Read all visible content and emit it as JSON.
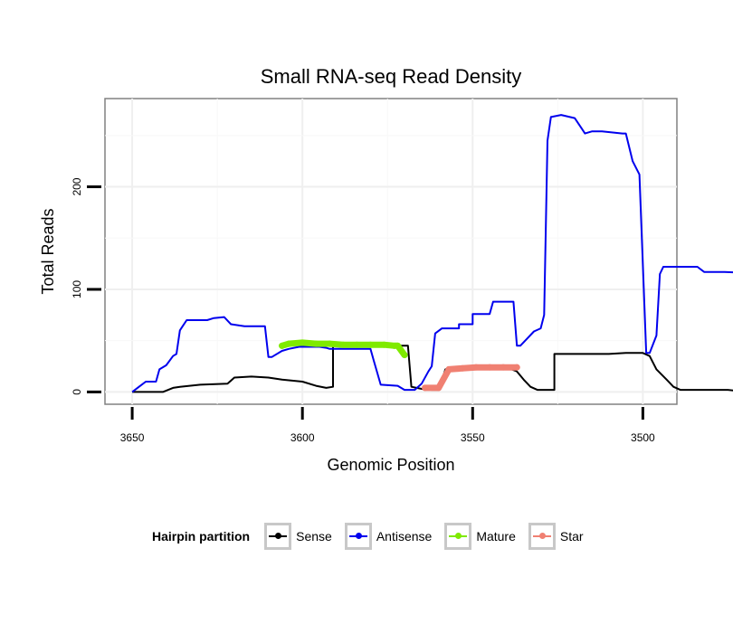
{
  "chart_data": {
    "type": "line",
    "title": "Small RNA-seq Read Density",
    "xlabel": "Genomic Position",
    "ylabel": "Total Reads",
    "xlim": [
      3658,
      3490
    ],
    "ylim": [
      -12,
      286
    ],
    "x_ticks": [
      3650,
      3600,
      3550,
      3500
    ],
    "y_ticks": [
      0,
      100,
      200
    ],
    "legend_title": "Hairpin partition",
    "legend_position": "bottom",
    "series": [
      {
        "name": "Sense",
        "color": "#000000",
        "points": [
          [
            3650,
            0
          ],
          [
            3641,
            0
          ],
          [
            3638,
            4
          ],
          [
            3636,
            5
          ],
          [
            3630,
            7
          ],
          [
            3622,
            8
          ],
          [
            3620,
            14
          ],
          [
            3615,
            15
          ],
          [
            3610,
            14
          ],
          [
            3606,
            12
          ],
          [
            3600,
            10
          ],
          [
            3596,
            6
          ],
          [
            3593,
            4
          ],
          [
            3591,
            5
          ],
          [
            3591,
            45
          ],
          [
            3580,
            45
          ],
          [
            3572,
            45
          ],
          [
            3569,
            45
          ],
          [
            3568,
            5
          ],
          [
            3565,
            3
          ],
          [
            3562,
            2
          ],
          [
            3560,
            2
          ],
          [
            3558,
            22
          ],
          [
            3555,
            23
          ],
          [
            3552,
            24
          ],
          [
            3548,
            25
          ],
          [
            3544,
            25
          ],
          [
            3540,
            24
          ],
          [
            3537,
            20
          ],
          [
            3535,
            12
          ],
          [
            3533,
            5
          ],
          [
            3531,
            2
          ],
          [
            3526,
            2
          ],
          [
            3526,
            37
          ],
          [
            3520,
            37
          ],
          [
            3510,
            37
          ],
          [
            3505,
            38
          ],
          [
            3500,
            38
          ],
          [
            3498,
            35
          ],
          [
            3496,
            22
          ],
          [
            3493,
            12
          ],
          [
            3491,
            5
          ],
          [
            3489,
            2
          ],
          [
            3480,
            2
          ],
          [
            3475,
            2
          ],
          [
            3472,
            1
          ],
          [
            3470,
            0
          ]
        ]
      },
      {
        "name": "Antisense",
        "color": "#0000ee",
        "points": [
          [
            3650,
            0
          ],
          [
            3648,
            5
          ],
          [
            3646,
            10
          ],
          [
            3643,
            10
          ],
          [
            3642,
            22
          ],
          [
            3640,
            26
          ],
          [
            3638,
            35
          ],
          [
            3637,
            37
          ],
          [
            3636,
            60
          ],
          [
            3635,
            65
          ],
          [
            3634,
            70
          ],
          [
            3628,
            70
          ],
          [
            3626,
            72
          ],
          [
            3623,
            73
          ],
          [
            3621,
            66
          ],
          [
            3617,
            64
          ],
          [
            3611,
            64
          ],
          [
            3610,
            34
          ],
          [
            3609,
            34
          ],
          [
            3606,
            40
          ],
          [
            3604,
            42
          ],
          [
            3601,
            44
          ],
          [
            3595,
            44
          ],
          [
            3593,
            43
          ],
          [
            3592,
            42
          ],
          [
            3591,
            42
          ],
          [
            3585,
            42
          ],
          [
            3580,
            42
          ],
          [
            3579,
            30
          ],
          [
            3577,
            7
          ],
          [
            3572,
            6
          ],
          [
            3570,
            2
          ],
          [
            3567,
            2
          ],
          [
            3565,
            8
          ],
          [
            3563,
            20
          ],
          [
            3562,
            25
          ],
          [
            3561,
            57
          ],
          [
            3559,
            62
          ],
          [
            3554,
            62
          ],
          [
            3554,
            66
          ],
          [
            3550,
            66
          ],
          [
            3550,
            76
          ],
          [
            3545,
            76
          ],
          [
            3544,
            88
          ],
          [
            3538,
            88
          ],
          [
            3537,
            45
          ],
          [
            3536,
            45
          ],
          [
            3534,
            52
          ],
          [
            3532,
            59
          ],
          [
            3530,
            62
          ],
          [
            3529,
            75
          ],
          [
            3528,
            245
          ],
          [
            3527,
            268
          ],
          [
            3524,
            270
          ],
          [
            3520,
            267
          ],
          [
            3518,
            257
          ],
          [
            3517,
            252
          ],
          [
            3515,
            254
          ],
          [
            3512,
            254
          ],
          [
            3506,
            252
          ],
          [
            3505,
            252
          ],
          [
            3503,
            225
          ],
          [
            3501,
            212
          ],
          [
            3499,
            38
          ],
          [
            3498,
            38
          ],
          [
            3496,
            55
          ],
          [
            3495,
            115
          ],
          [
            3494,
            122
          ],
          [
            3490,
            122
          ],
          [
            3484,
            122
          ],
          [
            3482,
            117
          ],
          [
            3479,
            117
          ],
          [
            3476,
            117
          ],
          [
            3470,
            116
          ],
          [
            3469,
            114
          ],
          [
            3468,
            8
          ],
          [
            3467,
            6
          ],
          [
            3466,
            2
          ],
          [
            3465,
            0
          ]
        ]
      },
      {
        "name": "Mature",
        "color": "#7fea00",
        "points": [
          [
            3606,
            45
          ],
          [
            3604,
            47
          ],
          [
            3600,
            48
          ],
          [
            3596,
            47
          ],
          [
            3592,
            47
          ],
          [
            3588,
            46
          ],
          [
            3584,
            46
          ],
          [
            3580,
            46
          ],
          [
            3576,
            46
          ],
          [
            3573,
            45
          ],
          [
            3572,
            45
          ],
          [
            3570,
            36
          ]
        ]
      },
      {
        "name": "Star",
        "color": "#f08072",
        "points": [
          [
            3564,
            4
          ],
          [
            3560,
            4
          ],
          [
            3557,
            22
          ],
          [
            3553,
            23
          ],
          [
            3549,
            24
          ],
          [
            3545,
            24
          ],
          [
            3541,
            24
          ],
          [
            3537,
            24
          ]
        ]
      }
    ]
  }
}
